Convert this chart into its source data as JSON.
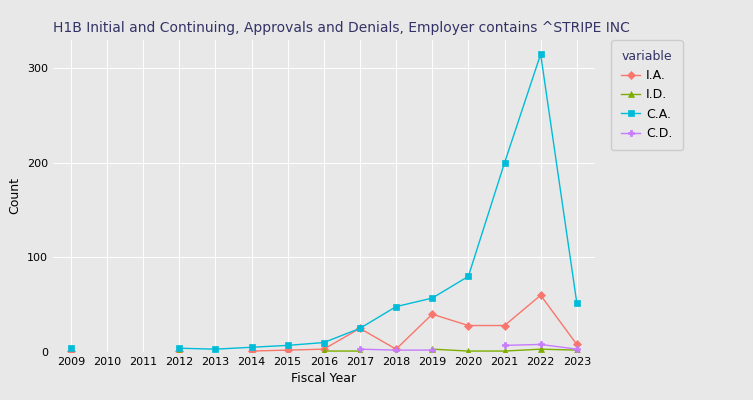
{
  "title": "H1B Initial and Continuing, Approvals and Denials, Employer contains ^STRIPE INC",
  "xlabel": "Fiscal Year",
  "ylabel": "Count",
  "legend_title": "variable",
  "background_color": "#E8E8E8",
  "plot_bg_color": "#E8E8E8",
  "title_color": "#333366",
  "years": [
    2009,
    2010,
    2011,
    2012,
    2013,
    2014,
    2015,
    2016,
    2017,
    2018,
    2019,
    2020,
    2021,
    2022,
    2023
  ],
  "series": {
    "I.A.": {
      "values": [
        1,
        null,
        null,
        1,
        null,
        1,
        2,
        3,
        25,
        3,
        40,
        28,
        28,
        60,
        8
      ],
      "color": "#F8766D",
      "marker": "D",
      "linestyle": "-"
    },
    "I.D.": {
      "values": [
        null,
        null,
        null,
        1,
        null,
        null,
        null,
        1,
        1,
        null,
        3,
        1,
        1,
        3,
        2
      ],
      "color": "#7CAE00",
      "marker": "^",
      "linestyle": "-"
    },
    "C.A.": {
      "values": [
        4,
        null,
        null,
        4,
        3,
        5,
        7,
        10,
        25,
        48,
        57,
        80,
        200,
        315,
        52
      ],
      "color": "#00BCD8",
      "marker": "s",
      "linestyle": "-"
    },
    "C.D.": {
      "values": [
        null,
        null,
        null,
        null,
        null,
        null,
        null,
        null,
        3,
        2,
        2,
        null,
        7,
        8,
        3
      ],
      "color": "#C77CFF",
      "marker": "P",
      "linestyle": "-"
    }
  },
  "ylim": [
    0,
    330
  ],
  "yticks": [
    0,
    100,
    200,
    300
  ],
  "grid_color": "white",
  "title_fontsize": 10,
  "axis_label_fontsize": 9,
  "tick_fontsize": 8,
  "legend_fontsize": 9
}
